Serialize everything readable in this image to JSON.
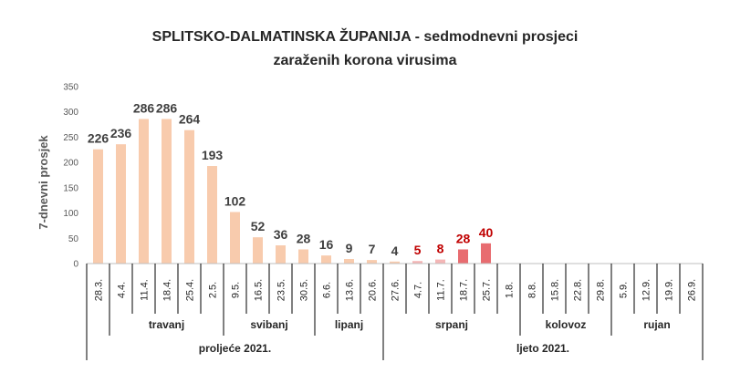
{
  "chart_data": {
    "type": "bar",
    "title_line1": "SPLITSKO-DALMATINSKA ŽUPANIJA  - sedmodnevni prosjeci",
    "title_line2": "zaraženih korona virusima",
    "ylabel": "7-dnevni prosjek",
    "ylim": [
      0,
      350
    ],
    "yticks": [
      "0",
      "50",
      "100",
      "150",
      "200",
      "250",
      "300",
      "350"
    ],
    "categories": [
      "28.3.",
      "4.4.",
      "11.4.",
      "18.4.",
      "25.4.",
      "2.5.",
      "9.5.",
      "16.5.",
      "23.5.",
      "30.5.",
      "6.6.",
      "13.6.",
      "20.6.",
      "27.6.",
      "4.7.",
      "11.7.",
      "18.7.",
      "25.7.",
      "1.8.",
      "8.8.",
      "15.8.",
      "22.8.",
      "29.8.",
      "5.9.",
      "12.9.",
      "19.9.",
      "26.9."
    ],
    "values": [
      226,
      236,
      286,
      286,
      264,
      193,
      102,
      52,
      36,
      28,
      16,
      9,
      7,
      4,
      5,
      8,
      28,
      40,
      null,
      null,
      null,
      null,
      null,
      null,
      null,
      null,
      null
    ],
    "data_labels": [
      "226",
      "236",
      "286",
      "286",
      "264",
      "193",
      "102",
      "52",
      "36",
      "28",
      "16",
      "9",
      "7",
      "4",
      "5",
      "8",
      "28",
      "40",
      "",
      "",
      "",
      "",
      "",
      "",
      "",
      "",
      ""
    ],
    "months": [
      {
        "label": "travanj",
        "start": 1,
        "end": 5
      },
      {
        "label": "svibanj",
        "start": 6,
        "end": 9
      },
      {
        "label": "lipanj",
        "start": 10,
        "end": 12
      },
      {
        "label": "srpanj",
        "start": 13,
        "end": 18
      },
      {
        "label": "kolovoz",
        "start": 19,
        "end": 22
      },
      {
        "label": "rujan",
        "start": 23,
        "end": 26
      }
    ],
    "seasons": [
      {
        "label": "proljeće 2021.",
        "start": 0,
        "end": 12
      },
      {
        "label": "ljeto 2021.",
        "start": 13,
        "end": 26
      }
    ],
    "grid": false,
    "legend": "none",
    "colors": {
      "bar_spring": "#f8cbad",
      "bar_summer_early": "#f4b6b6",
      "bar_summer": "#e86c70",
      "label_dark": "#404040",
      "label_red": "#c00000",
      "axis": "#000000"
    }
  }
}
